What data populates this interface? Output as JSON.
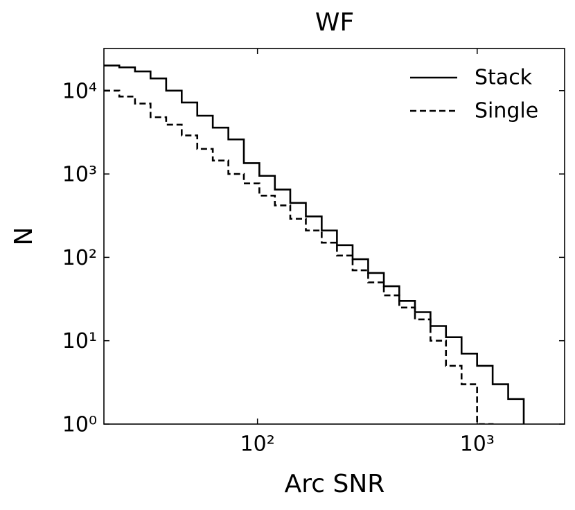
{
  "chart_data": {
    "type": "histogram",
    "title": "WF",
    "x_label": "Arc SNR",
    "y_label": "N",
    "xscale": "log",
    "yscale": "log",
    "xlim": [
      20,
      2500
    ],
    "ylim": [
      1,
      32000
    ],
    "xticks": [
      {
        "value": 100,
        "label": "10²"
      },
      {
        "value": 1000,
        "label": "10³"
      }
    ],
    "yticks": [
      {
        "value": 1,
        "label": "10⁰"
      },
      {
        "value": 10,
        "label": "10¹"
      },
      {
        "value": 100,
        "label": "10²"
      },
      {
        "value": 1000,
        "label": "10³"
      },
      {
        "value": 10000,
        "label": "10⁴"
      }
    ],
    "legend": "upper right",
    "bins": [
      20,
      23.5,
      27.7,
      32.6,
      38.4,
      45.2,
      53.2,
      62.6,
      73.7,
      86.7,
      102,
      120,
      141,
      166,
      196,
      230,
      271,
      319,
      376,
      442,
      521,
      613,
      721,
      849,
      999,
      1176,
      1384,
      1629,
      1917,
      2257
    ],
    "series": [
      {
        "name": "Stack",
        "color": "#000000",
        "linestyle": "solid",
        "values": [
          20000,
          19000,
          17000,
          14000,
          10000,
          7200,
          5000,
          3600,
          2600,
          1350,
          950,
          650,
          450,
          310,
          210,
          140,
          95,
          65,
          45,
          30,
          22,
          15,
          11,
          7,
          5,
          3,
          2,
          0,
          0
        ]
      },
      {
        "name": "Single",
        "color": "#000000",
        "linestyle": "dashed",
        "values": [
          10000,
          8500,
          7000,
          4800,
          3900,
          2900,
          2000,
          1450,
          1000,
          770,
          550,
          420,
          290,
          210,
          150,
          105,
          70,
          50,
          35,
          25,
          18,
          10,
          5,
          3,
          1,
          0,
          0,
          0,
          0
        ]
      }
    ]
  }
}
